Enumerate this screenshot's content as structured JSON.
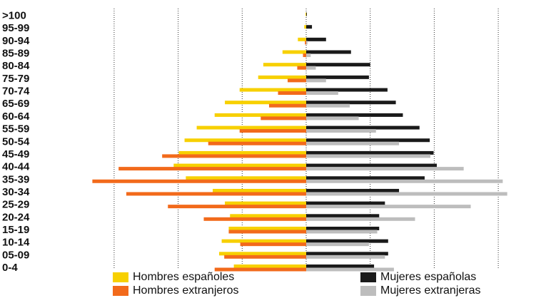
{
  "chart_data": {
    "type": "bar",
    "orientation": "horizontal-population-pyramid",
    "categories": [
      "0-4",
      "05-09",
      "10-14",
      "15-19",
      "20-24",
      "25-29",
      "30-34",
      "35-39",
      "40-44",
      "45-49",
      "50-54",
      "55-59",
      "60-64",
      "65-69",
      "70-74",
      "75-79",
      "80-84",
      "85-89",
      "90-94",
      "95-99",
      ">100"
    ],
    "series": [
      {
        "name": "Hombres españoles",
        "side": "left",
        "color": "#f7d000",
        "values": [
          1.13,
          1.36,
          1.32,
          1.21,
          1.19,
          1.27,
          1.46,
          1.88,
          2.07,
          1.99,
          1.9,
          1.71,
          1.43,
          1.27,
          1.04,
          0.75,
          0.67,
          0.37,
          0.13,
          0.03,
          0.01
        ]
      },
      {
        "name": "Hombres extranjeros",
        "side": "left",
        "color": "#f26a1b",
        "values": [
          1.43,
          1.28,
          1.03,
          1.21,
          1.6,
          2.16,
          2.81,
          3.34,
          2.93,
          2.25,
          1.53,
          1.04,
          0.71,
          0.58,
          0.44,
          0.29,
          0.14,
          0.05,
          0.02,
          0.0,
          0.0
        ]
      },
      {
        "name": "Mujeres españolas",
        "side": "right",
        "color": "#1a1a1a",
        "values": [
          1.06,
          1.28,
          1.28,
          1.14,
          1.14,
          1.23,
          1.45,
          1.85,
          2.04,
          1.99,
          1.93,
          1.77,
          1.51,
          1.4,
          1.27,
          0.98,
          1.0,
          0.7,
          0.31,
          0.09,
          0.01
        ]
      },
      {
        "name": "Mujeres extranjeras",
        "side": "right",
        "color": "#bdbdbd",
        "values": [
          1.37,
          1.23,
          0.98,
          1.11,
          1.7,
          2.57,
          3.14,
          3.07,
          2.46,
          1.94,
          1.45,
          1.09,
          0.82,
          0.68,
          0.5,
          0.31,
          0.15,
          0.07,
          0.02,
          0.0,
          0.0
        ]
      }
    ],
    "xlim": [
      -3.0,
      3.0
    ],
    "xticks": [
      -3,
      -2,
      -1,
      0,
      1,
      2,
      3
    ],
    "grid": "vertical-dotted",
    "legend": "bottom"
  }
}
